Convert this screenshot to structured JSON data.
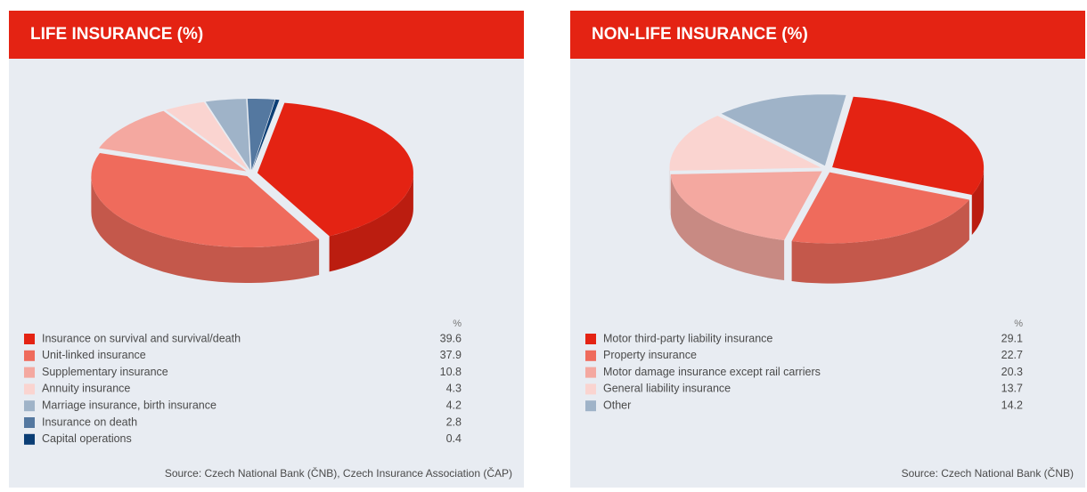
{
  "chart_data": [
    {
      "type": "pie",
      "title": "LIFE INSURANCE (%)",
      "unit_label": "%",
      "categories": [
        "Insurance on survival and survival/death",
        "Unit-linked insurance",
        "Supplementary insurance",
        "Annuity insurance",
        "Marriage insurance, birth insurance",
        "Insurance on death",
        "Capital operations"
      ],
      "values": [
        39.6,
        37.9,
        10.8,
        4.3,
        4.2,
        2.8,
        0.4
      ],
      "colors": [
        "#e42313",
        "#ef6b5c",
        "#f4a8a0",
        "#fad4d0",
        "#9fb3c8",
        "#5478a0",
        "#0b3e75"
      ],
      "source": "Source: Czech National Bank (ČNB), Czech Insurance Association (ČAP)"
    },
    {
      "type": "pie",
      "title": "NON-LIFE INSURANCE (%)",
      "unit_label": "%",
      "categories": [
        "Motor third-party liability insurance",
        "Property insurance",
        "Motor damage insurance except rail carriers",
        "General liability insurance",
        "Other"
      ],
      "values": [
        29.1,
        22.7,
        20.3,
        13.7,
        14.2
      ],
      "colors": [
        "#e42313",
        "#ef6b5c",
        "#f4a8a0",
        "#fad4d0",
        "#9fb3c8"
      ],
      "source": "Source: Czech National Bank (ČNB)"
    }
  ]
}
